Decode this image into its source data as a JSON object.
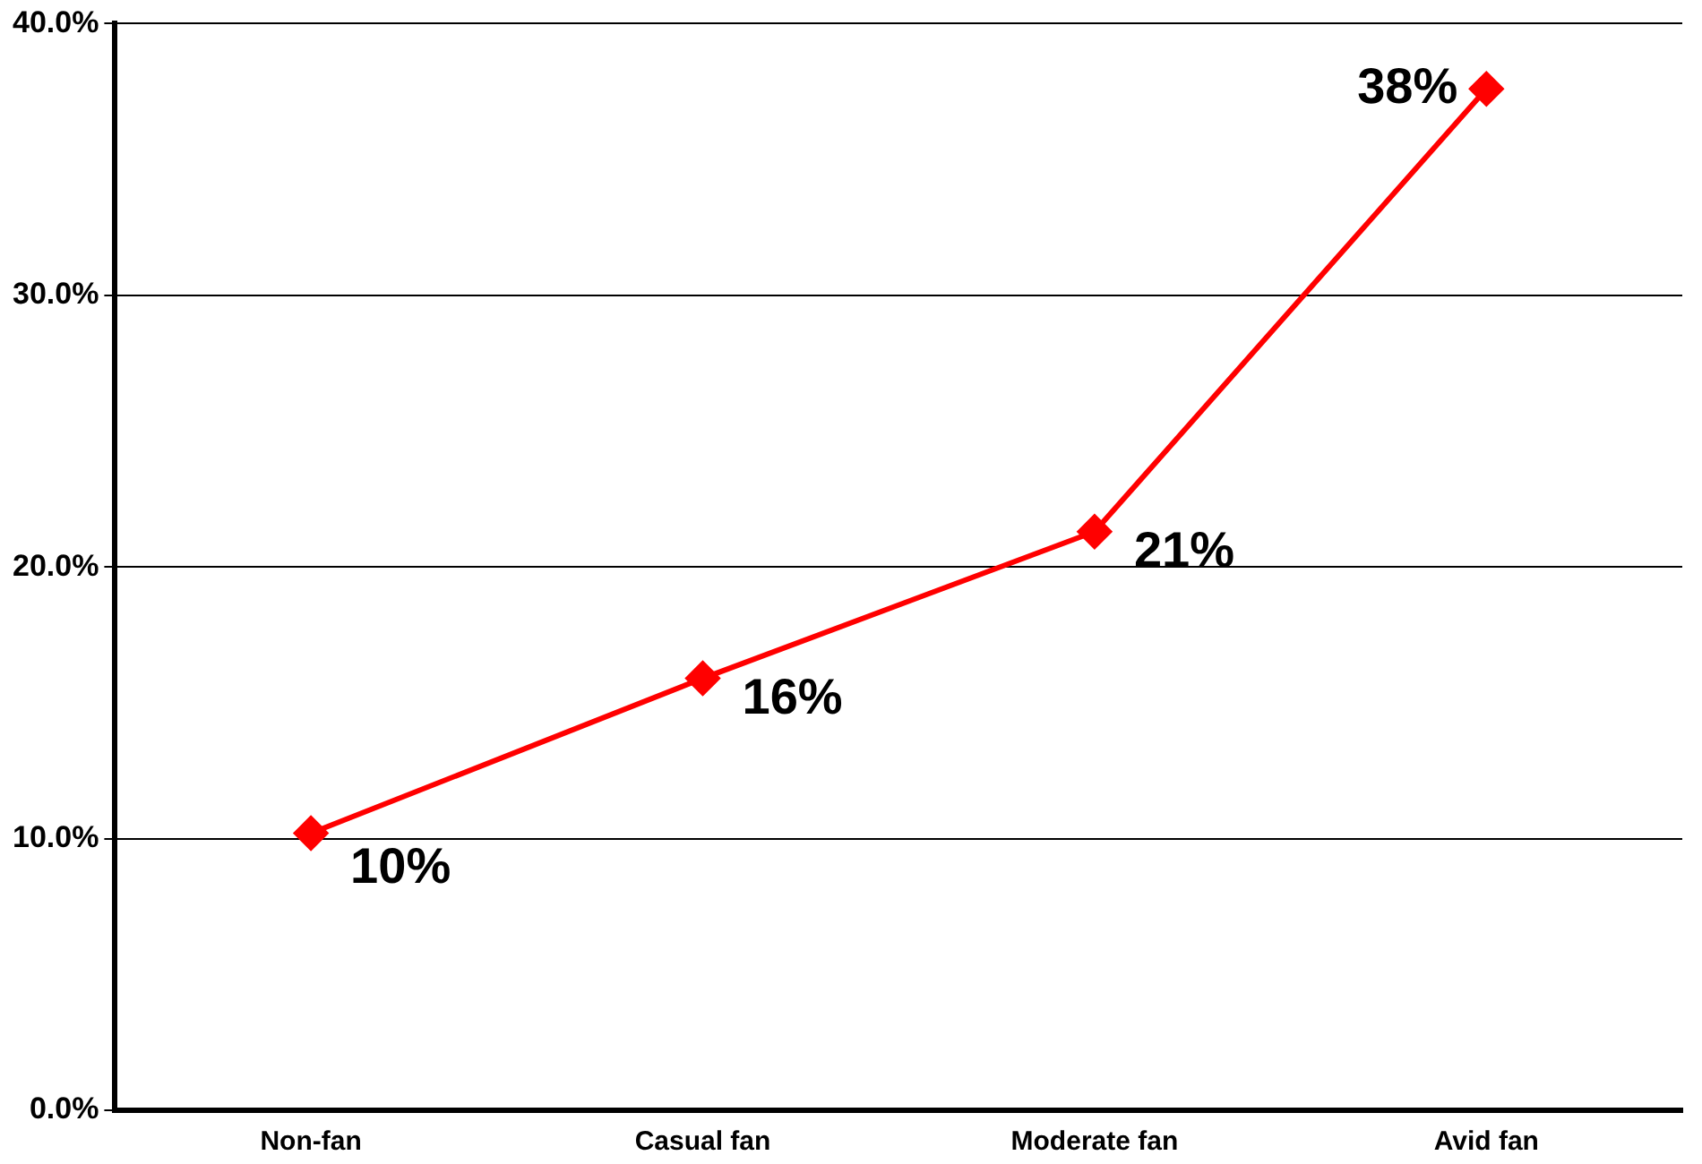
{
  "chart_data": {
    "type": "line",
    "categories": [
      "Non-fan",
      "Casual fan",
      "Moderate fan",
      "Avid fan"
    ],
    "series": [
      {
        "color": "#ff0000",
        "values": [
          10.2,
          15.9,
          21.3,
          37.6
        ],
        "value_labels": [
          "10%",
          "16%",
          "21%",
          "38%"
        ]
      }
    ],
    "ylim": [
      0,
      40
    ],
    "yticks": [
      {
        "value": 0,
        "label": "0.0%"
      },
      {
        "value": 10,
        "label": "10.0%"
      },
      {
        "value": 20,
        "label": "20.0%"
      },
      {
        "value": 30,
        "label": "30.0%"
      },
      {
        "value": 40,
        "label": "40.0%"
      }
    ],
    "grid": "y",
    "legend": false,
    "marker": "diamond",
    "line_style": "solid"
  }
}
